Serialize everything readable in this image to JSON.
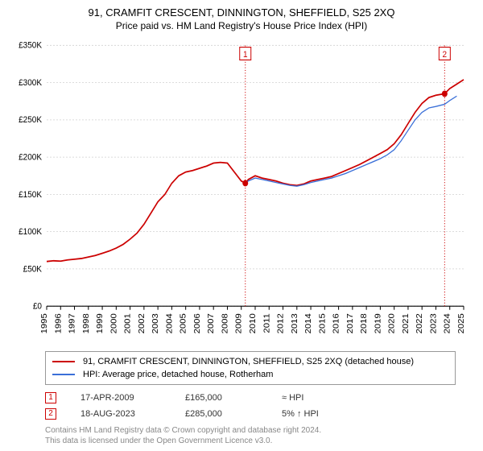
{
  "title": "91, CRAMFIT CRESCENT, DINNINGTON, SHEFFIELD, S25 2XQ",
  "subtitle": "Price paid vs. HM Land Registry's House Price Index (HPI)",
  "chart": {
    "type": "line",
    "background_color": "#ffffff",
    "grid_color": "#d0d0d0",
    "axis_color": "#000000",
    "x_years": [
      1995,
      1996,
      1997,
      1998,
      1999,
      2000,
      2001,
      2002,
      2003,
      2004,
      2005,
      2006,
      2007,
      2008,
      2009,
      2010,
      2011,
      2012,
      2013,
      2014,
      2015,
      2016,
      2017,
      2018,
      2019,
      2020,
      2021,
      2022,
      2023,
      2024,
      2025
    ],
    "x_min": 1995,
    "x_max": 2025,
    "y_ticks": [
      0,
      50000,
      100000,
      150000,
      200000,
      250000,
      300000,
      350000
    ],
    "y_tick_labels": [
      "£0",
      "£50K",
      "£100K",
      "£150K",
      "£200K",
      "£250K",
      "£300K",
      "£350K"
    ],
    "y_min": 0,
    "y_max": 350000,
    "series": [
      {
        "name": "property",
        "color": "#cc0000",
        "width": 1.6,
        "label": "91, CRAMFIT CRESCENT, DINNINGTON, SHEFFIELD, S25 2XQ (detached house)",
        "points_x": [
          1995,
          1995.5,
          1996,
          1996.5,
          1997,
          1997.5,
          1998,
          1998.5,
          1999,
          1999.5,
          2000,
          2000.5,
          2001,
          2001.5,
          2002,
          2002.5,
          2003,
          2003.5,
          2004,
          2004.5,
          2005,
          2005.5,
          2006,
          2006.5,
          2007,
          2007.5,
          2008,
          2008.5,
          2009,
          2009.3,
          2009.5,
          2010,
          2010.5,
          2011,
          2011.5,
          2012,
          2012.5,
          2013,
          2013.5,
          2014,
          2014.5,
          2015,
          2015.5,
          2016,
          2016.5,
          2017,
          2017.5,
          2018,
          2018.5,
          2019,
          2019.5,
          2020,
          2020.5,
          2021,
          2021.5,
          2022,
          2022.5,
          2023,
          2023.63,
          2024,
          2024.5,
          2025
        ],
        "points_y": [
          60000,
          61000,
          60500,
          62000,
          63000,
          64000,
          66000,
          68000,
          71000,
          74000,
          78000,
          83000,
          90000,
          98000,
          110000,
          125000,
          140000,
          150000,
          165000,
          175000,
          180000,
          182000,
          185000,
          188000,
          192000,
          193000,
          192000,
          180000,
          168000,
          165000,
          170000,
          175000,
          172000,
          170000,
          168000,
          165000,
          163000,
          162000,
          164000,
          168000,
          170000,
          172000,
          174000,
          178000,
          182000,
          186000,
          190000,
          195000,
          200000,
          205000,
          210000,
          218000,
          230000,
          245000,
          260000,
          272000,
          280000,
          283000,
          285000,
          292000,
          298000,
          304000
        ]
      },
      {
        "name": "hpi",
        "color": "#3a6fd8",
        "width": 1.2,
        "label": "HPI: Average price, detached house, Rotherham",
        "start_index": 29,
        "points_x": [
          2009.3,
          2009.5,
          2010,
          2010.5,
          2011,
          2011.5,
          2012,
          2012.5,
          2013,
          2013.5,
          2014,
          2014.5,
          2015,
          2015.5,
          2016,
          2016.5,
          2017,
          2017.5,
          2018,
          2018.5,
          2019,
          2019.5,
          2020,
          2020.5,
          2021,
          2021.5,
          2022,
          2022.5,
          2023,
          2023.63,
          2024,
          2024.5
        ],
        "points_y": [
          165000,
          168000,
          172000,
          170000,
          168000,
          166000,
          164000,
          162000,
          161000,
          163000,
          166000,
          168000,
          170000,
          172000,
          175000,
          178000,
          182000,
          186000,
          190000,
          194000,
          198000,
          203000,
          210000,
          222000,
          236000,
          250000,
          260000,
          266000,
          268000,
          271000,
          276000,
          282000
        ]
      }
    ],
    "sale_markers": [
      {
        "n": "1",
        "x": 2009.29,
        "y": 165000
      },
      {
        "n": "2",
        "x": 2023.63,
        "y": 285000
      }
    ]
  },
  "legend": {
    "rows": [
      {
        "color": "#cc0000",
        "label": "91, CRAMFIT CRESCENT, DINNINGTON, SHEFFIELD, S25 2XQ (detached house)"
      },
      {
        "color": "#3a6fd8",
        "label": "HPI: Average price, detached house, Rotherham"
      }
    ]
  },
  "sales": [
    {
      "n": "1",
      "date": "17-APR-2009",
      "price": "£165,000",
      "vs_hpi": "≈ HPI"
    },
    {
      "n": "2",
      "date": "18-AUG-2023",
      "price": "£285,000",
      "vs_hpi": "5% ↑ HPI"
    }
  ],
  "footer": {
    "line1": "Contains HM Land Registry data © Crown copyright and database right 2024.",
    "line2": "This data is licensed under the Open Government Licence v3.0."
  }
}
